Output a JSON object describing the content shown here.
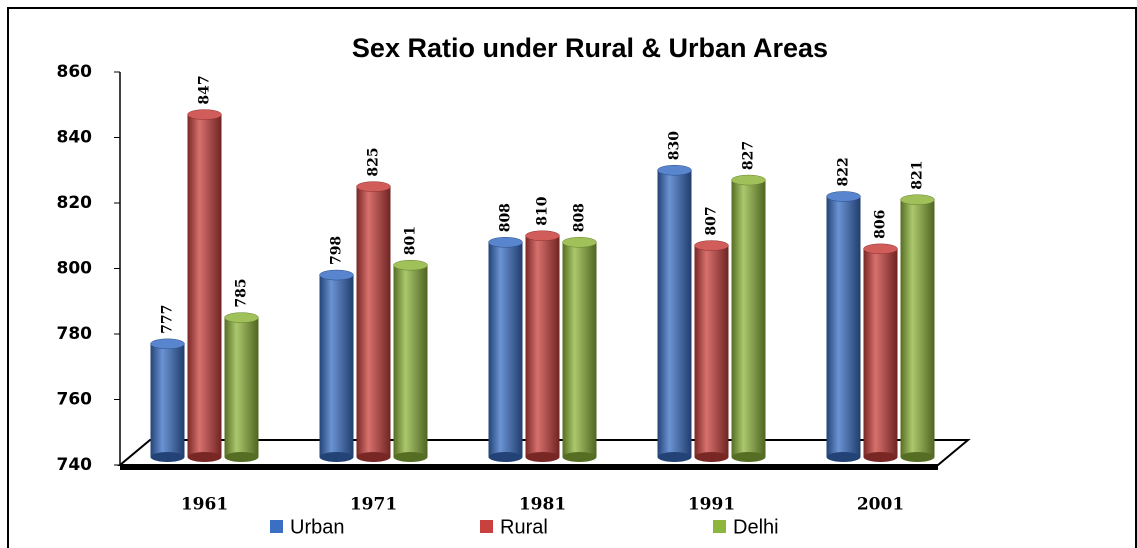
{
  "chart_data": {
    "type": "bar",
    "title": "Sex Ratio under Rural & Urban Areas",
    "categories": [
      "1961",
      "1971",
      "1981",
      "1991",
      "2001"
    ],
    "series": [
      {
        "name": "Urban",
        "color": "#3a6fc4",
        "values": [
          777,
          798,
          808,
          830,
          822
        ]
      },
      {
        "name": "Rural",
        "color": "#c9413e",
        "values": [
          847,
          825,
          810,
          807,
          806
        ]
      },
      {
        "name": "Delhi",
        "color": "#8fb63c",
        "values": [
          785,
          801,
          808,
          827,
          821
        ]
      }
    ],
    "ylim": [
      740,
      860
    ],
    "yticks": [
      740,
      760,
      780,
      800,
      820,
      840,
      860
    ],
    "legend": "bottom"
  }
}
